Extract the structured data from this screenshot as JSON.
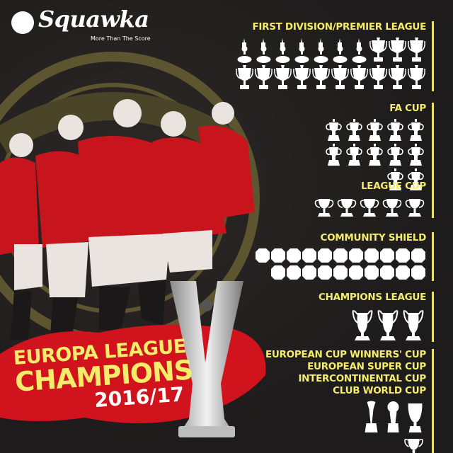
{
  "brand": {
    "name": "Squawka",
    "tagline": "More Than The Score",
    "logo_icon": "squawka-swirl-icon"
  },
  "headline": {
    "line1": "EUROPA LEAGUE",
    "line2": "CHAMPIONS",
    "season": "2016/17"
  },
  "colors": {
    "background": "#211e1f",
    "accent_yellow": "#f4ec6a",
    "red": "#d0131c",
    "trophy": "#ffffff"
  },
  "sections": [
    {
      "titles": [
        "FIRST DIVISION/PREMIER LEAGUE"
      ],
      "icons": [
        {
          "type": "first-division-trophy",
          "count": 7
        },
        {
          "type": "premier-league-trophy",
          "count": 13
        }
      ]
    },
    {
      "titles": [
        "FA CUP"
      ],
      "icons": [
        {
          "type": "fa-cup-trophy",
          "count": 12
        }
      ]
    },
    {
      "titles": [
        "LEAGUE CUP"
      ],
      "icons": [
        {
          "type": "league-cup-trophy",
          "count": 5
        }
      ]
    },
    {
      "titles": [
        "COMMUNITY SHIELD"
      ],
      "icons": [
        {
          "type": "community-shield",
          "count": 21
        }
      ]
    },
    {
      "titles": [
        "CHAMPIONS LEAGUE"
      ],
      "icons": [
        {
          "type": "champions-league-trophy",
          "count": 3
        }
      ]
    },
    {
      "titles": [
        "EUROPEAN CUP WINNERS' CUP",
        "EUROPEAN SUPER CUP",
        "INTERCONTINENTAL CUP",
        "CLUB WORLD CUP"
      ],
      "icons": [
        {
          "type": "club-world-cup-trophy",
          "count": 1
        },
        {
          "type": "intercontinental-cup-trophy",
          "count": 1
        },
        {
          "type": "super-cup-trophy",
          "count": 1
        },
        {
          "type": "cup-winners-cup-trophy",
          "count": 1
        }
      ]
    }
  ]
}
